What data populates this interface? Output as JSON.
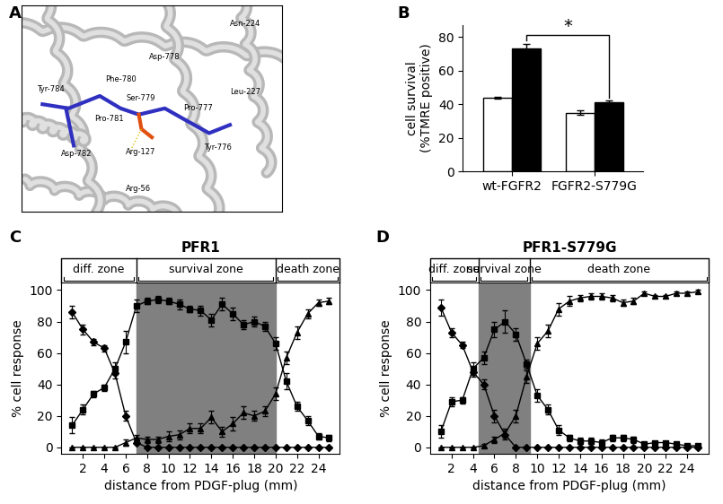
{
  "panel_A": {
    "panel": "A",
    "type": "structure",
    "labels": [
      "Tyr-784",
      "Phe-780",
      "Pro-781",
      "Asp-782",
      "Asp-778",
      "Asn-224",
      "Leu-227",
      "Ser-779",
      "Pro-777",
      "Tyr-776",
      "Arg-127",
      "Arg-56"
    ]
  },
  "chart_data": [
    {
      "panel": "B",
      "type": "bar",
      "y_label": "cell survival\n(%TMRE positive)",
      "categories": [
        "wt-FGFR2",
        "FGFR2-S779G"
      ],
      "series": [
        {
          "color": "#ffffff",
          "values": [
            44,
            35
          ],
          "errors": [
            0.6,
            1.5
          ]
        },
        {
          "color": "#000000",
          "values": [
            73,
            41
          ],
          "errors": [
            3,
            1
          ]
        }
      ],
      "ylim": [
        0,
        87
      ],
      "yticks": [
        0,
        20,
        40,
        60,
        80
      ],
      "annotation": {
        "text": "*",
        "from": "wt-FGFR2",
        "to": "FGFR2-S779G"
      }
    },
    {
      "panel": "C",
      "type": "line",
      "title": "PFR1",
      "x_label": "distance from PDGF-plug (mm)",
      "y_label": "% cell response",
      "x": [
        1,
        2,
        3,
        4,
        5,
        6,
        7,
        8,
        9,
        10,
        11,
        12,
        13,
        14,
        15,
        16,
        17,
        18,
        19,
        20,
        21,
        22,
        23,
        24,
        25
      ],
      "xlim": [
        0,
        26
      ],
      "xticks": [
        2,
        4,
        6,
        8,
        10,
        12,
        14,
        16,
        18,
        20,
        22,
        24
      ],
      "ylim": [
        -4,
        105
      ],
      "yticks": [
        0,
        20,
        40,
        60,
        80,
        100
      ],
      "zones": [
        {
          "label": "diff. zone",
          "start": 0,
          "end": 7
        },
        {
          "label": "survival zone",
          "start": 7,
          "end": 20
        },
        {
          "label": "death zone",
          "start": 20,
          "end": 26
        }
      ],
      "shaded_zone": "survival zone",
      "series": [
        {
          "marker": "diamond",
          "color": "#000000",
          "values": [
            86,
            75,
            67,
            63,
            47,
            20,
            3,
            0,
            0,
            0,
            0,
            0,
            0,
            0,
            0,
            0,
            0,
            0,
            0,
            0,
            0,
            0,
            0,
            0,
            0
          ],
          "errors": [
            4,
            3,
            2,
            2,
            3,
            3,
            1,
            0,
            0,
            0,
            0,
            0,
            0,
            0,
            0,
            0,
            0,
            0,
            0,
            0,
            0,
            0,
            0,
            0,
            0
          ]
        },
        {
          "marker": "square",
          "color": "#000000",
          "values": [
            14,
            24,
            34,
            38,
            50,
            67,
            90,
            93,
            94,
            93,
            91,
            88,
            87,
            81,
            91,
            85,
            78,
            80,
            77,
            66,
            42,
            26,
            17,
            7,
            6
          ],
          "errors": [
            5,
            3,
            2,
            2,
            4,
            7,
            4,
            2,
            2,
            2,
            3,
            2,
            3,
            4,
            4,
            4,
            3,
            3,
            3,
            4,
            5,
            3,
            3,
            2,
            2
          ]
        },
        {
          "marker": "triangle",
          "color": "#000000",
          "values": [
            0,
            0,
            0,
            0,
            0,
            3,
            6,
            5,
            5,
            7,
            8,
            12,
            12,
            19,
            10,
            15,
            22,
            20,
            23,
            34,
            57,
            73,
            85,
            92,
            93
          ],
          "errors": [
            0,
            0,
            0,
            0,
            0,
            2,
            2,
            2,
            2,
            3,
            3,
            3,
            3,
            4,
            3,
            4,
            4,
            3,
            3,
            4,
            4,
            4,
            3,
            2,
            2
          ]
        }
      ]
    },
    {
      "panel": "D",
      "type": "line",
      "title": "PFR1-S779G",
      "x_label": "distance from PDGF-plug (mm)",
      "y_label": "% cell response",
      "x": [
        1,
        2,
        3,
        4,
        5,
        6,
        7,
        8,
        9,
        10,
        11,
        12,
        13,
        14,
        15,
        16,
        17,
        18,
        19,
        20,
        21,
        22,
        23,
        24,
        25
      ],
      "xlim": [
        0,
        26
      ],
      "xticks": [
        2,
        4,
        6,
        8,
        10,
        12,
        14,
        16,
        18,
        20,
        22,
        24
      ],
      "ylim": [
        -4,
        105
      ],
      "yticks": [
        0,
        20,
        40,
        60,
        80,
        100
      ],
      "zones": [
        {
          "label": "diff. zone",
          "start": 0,
          "end": 4.5
        },
        {
          "label": "survival zone",
          "start": 4.5,
          "end": 9.3
        },
        {
          "label": "death zone",
          "start": 9.3,
          "end": 26
        }
      ],
      "shaded_zone": "survival zone",
      "series": [
        {
          "marker": "diamond",
          "color": "#000000",
          "values": [
            89,
            73,
            65,
            48,
            40,
            20,
            8,
            0,
            0,
            0,
            0,
            0,
            0,
            0,
            0,
            0,
            0,
            0,
            0,
            0,
            0,
            0,
            0,
            0,
            0
          ],
          "errors": [
            5,
            3,
            2,
            3,
            3,
            4,
            3,
            0,
            0,
            0,
            0,
            0,
            0,
            0,
            0,
            0,
            0,
            0,
            0,
            0,
            0,
            0,
            0,
            0,
            0
          ]
        },
        {
          "marker": "square",
          "color": "#000000",
          "values": [
            10,
            29,
            30,
            50,
            57,
            75,
            80,
            72,
            53,
            33,
            24,
            11,
            6,
            4,
            4,
            3,
            6,
            6,
            5,
            2,
            3,
            3,
            2,
            1,
            1
          ],
          "errors": [
            4,
            3,
            2,
            4,
            4,
            5,
            7,
            4,
            3,
            4,
            3,
            3,
            2,
            2,
            2,
            2,
            2,
            2,
            2,
            1,
            1,
            1,
            1,
            1,
            1
          ]
        },
        {
          "marker": "triangle",
          "color": "#000000",
          "values": [
            0,
            0,
            0,
            0,
            1,
            5,
            9,
            20,
            45,
            66,
            74,
            88,
            93,
            95,
            96,
            96,
            95,
            92,
            93,
            98,
            96,
            96,
            98,
            98,
            99
          ],
          "errors": [
            0,
            0,
            0,
            0,
            1,
            2,
            3,
            4,
            4,
            4,
            4,
            4,
            3,
            2,
            2,
            2,
            2,
            2,
            2,
            1,
            1,
            1,
            1,
            1,
            1
          ]
        }
      ]
    }
  ]
}
